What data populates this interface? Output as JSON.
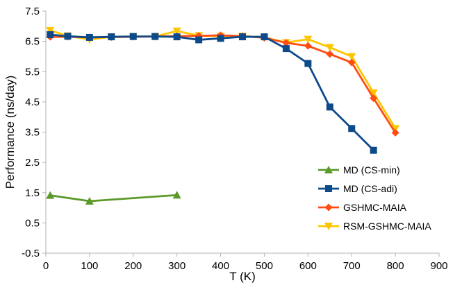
{
  "chart_data": {
    "type": "line",
    "title": "",
    "xlabel": "T (K)",
    "ylabel": "Performance (ns/day)",
    "xlim": [
      0,
      900
    ],
    "ylim": [
      -0.5,
      7.5
    ],
    "x_ticks": [
      "0",
      "100",
      "200",
      "300",
      "400",
      "500",
      "600",
      "700",
      "800",
      "900"
    ],
    "y_ticks": [
      "-0.5",
      "0.5",
      "1.5",
      "2.5",
      "3.5",
      "4.5",
      "5.5",
      "6.5",
      "7.5"
    ],
    "grid": false,
    "legend_position": "bottom-right",
    "series": [
      {
        "name": "MD (CS-min)",
        "color": "#5a9a28",
        "marker": "triangle-up",
        "x": [
          10,
          100,
          300
        ],
        "y": [
          1.41,
          1.22,
          1.42
        ]
      },
      {
        "name": "MD (CS-adi)",
        "color": "#0d4a8a",
        "marker": "square",
        "x": [
          10,
          50,
          100,
          150,
          200,
          250,
          300,
          350,
          400,
          450,
          500,
          550,
          600,
          650,
          700,
          750
        ],
        "y": [
          6.72,
          6.67,
          6.63,
          6.65,
          6.66,
          6.66,
          6.65,
          6.55,
          6.6,
          6.65,
          6.65,
          6.26,
          5.77,
          4.33,
          3.62,
          2.9
        ]
      },
      {
        "name": "GSHMC-MAIA",
        "color": "#ff4d12",
        "marker": "diamond",
        "x": [
          10,
          50,
          100,
          150,
          200,
          250,
          300,
          350,
          400,
          450,
          500,
          550,
          600,
          650,
          700,
          750,
          800
        ],
        "y": [
          6.65,
          6.65,
          6.63,
          6.64,
          6.65,
          6.66,
          6.67,
          6.68,
          6.7,
          6.67,
          6.62,
          6.45,
          6.35,
          6.08,
          5.8,
          4.62,
          3.48
        ]
      },
      {
        "name": "RSM-GSHMC-MAIA",
        "color": "#ffc600",
        "marker": "triangle-down",
        "x": [
          10,
          50,
          100,
          150,
          200,
          250,
          300,
          350,
          400,
          450,
          500,
          550,
          600,
          650,
          700,
          750,
          800
        ],
        "y": [
          6.86,
          6.68,
          6.56,
          6.65,
          6.66,
          6.66,
          6.84,
          6.69,
          6.67,
          6.67,
          6.63,
          6.46,
          6.57,
          6.3,
          6.0,
          4.8,
          3.62
        ]
      }
    ]
  }
}
